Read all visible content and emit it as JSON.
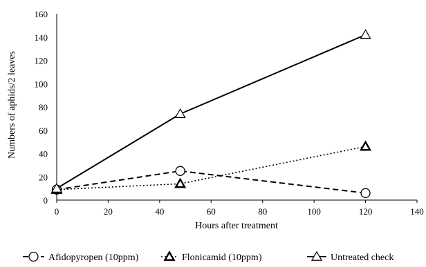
{
  "chart_data": {
    "type": "line",
    "title": "",
    "xlabel": "Hours after treatment",
    "ylabel": "Numbers of aphids/2 leaves",
    "xlim": [
      0,
      140
    ],
    "ylim": [
      0,
      160
    ],
    "xticks": [
      0,
      20,
      40,
      60,
      80,
      100,
      120,
      140
    ],
    "yticks": [
      0,
      20,
      40,
      60,
      80,
      100,
      120,
      140,
      160
    ],
    "grid": false,
    "legend_position": "bottom",
    "series": [
      {
        "name": "Afidopyropen (10ppm)",
        "x": [
          0,
          48,
          120
        ],
        "values": [
          9,
          25,
          6
        ],
        "line_style": "dashed",
        "marker": "circle",
        "color": "#000000"
      },
      {
        "name": "Flonicamid (10ppm)",
        "x": [
          0,
          48,
          120
        ],
        "values": [
          9,
          14,
          46
        ],
        "line_style": "dotted",
        "marker": "triangle-bold",
        "color": "#000000"
      },
      {
        "name": "Untreated check",
        "x": [
          0,
          48,
          120
        ],
        "values": [
          10,
          74,
          142
        ],
        "line_style": "solid",
        "marker": "triangle",
        "color": "#000000"
      }
    ]
  }
}
